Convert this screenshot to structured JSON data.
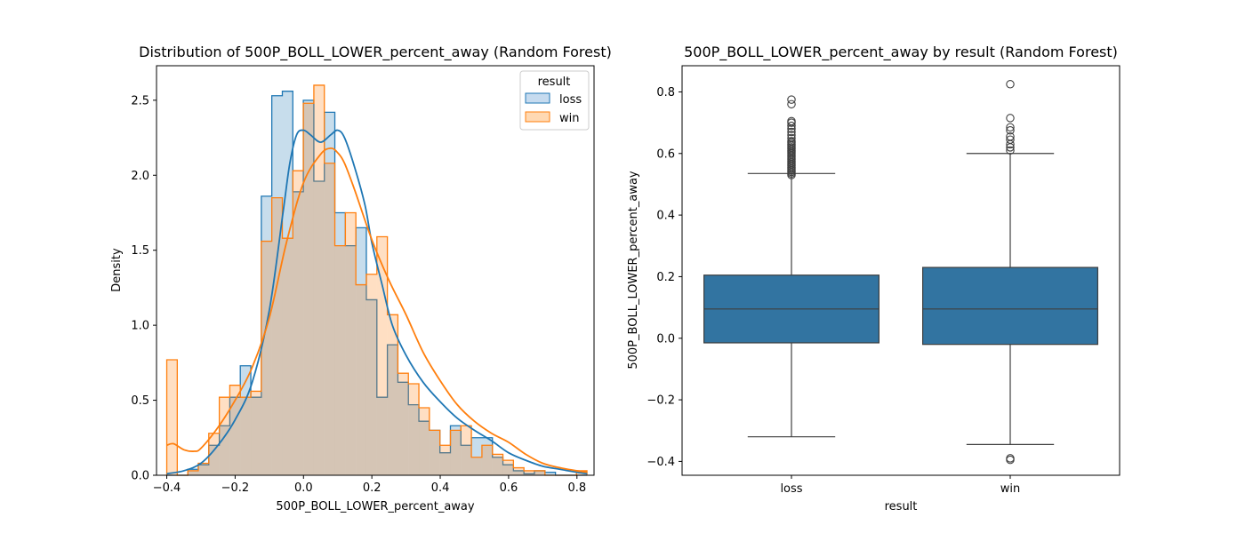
{
  "chart_data": [
    {
      "type": "histogram",
      "title": "Distribution of 500P_BOLL_LOWER_percent_away (Random Forest)",
      "xlabel": "500P_BOLL_LOWER_percent_away",
      "ylabel": "Density",
      "xlim": [
        -0.43,
        0.85
      ],
      "ylim": [
        0,
        2.73
      ],
      "xticks": [
        -0.4,
        -0.2,
        0.0,
        0.2,
        0.4,
        0.6,
        0.8
      ],
      "xtick_labels": [
        "−0.4",
        "−0.2",
        "0.0",
        "0.2",
        "0.4",
        "0.6",
        "0.8"
      ],
      "yticks": [
        0.0,
        0.5,
        1.0,
        1.5,
        2.0,
        2.5
      ],
      "ytick_labels": [
        "0.0",
        "0.5",
        "1.0",
        "1.5",
        "2.0",
        "2.5"
      ],
      "bin_edges": [
        -0.4,
        -0.3693,
        -0.3385,
        -0.3078,
        -0.2771,
        -0.2463,
        -0.2156,
        -0.1849,
        -0.1541,
        -0.1234,
        -0.0927,
        -0.0619,
        -0.0312,
        -0.0005,
        0.0303,
        0.061,
        0.0917,
        0.1225,
        0.1532,
        0.1839,
        0.2147,
        0.2454,
        0.2761,
        0.3069,
        0.3376,
        0.3683,
        0.3991,
        0.4298,
        0.4605,
        0.4912,
        0.522,
        0.5527,
        0.5834,
        0.6142,
        0.6449,
        0.6756,
        0.7064,
        0.7371,
        0.7678,
        0.7986,
        0.8293
      ],
      "legend": {
        "title": "result",
        "position": "top-right"
      },
      "series": [
        {
          "name": "loss",
          "color": "#1f77b4",
          "fill": "#c6dbef",
          "density": [
            0.0,
            0.0,
            0.04,
            0.07,
            0.2,
            0.33,
            0.52,
            0.73,
            0.52,
            1.86,
            2.53,
            2.56,
            1.89,
            2.5,
            1.96,
            2.42,
            1.75,
            1.53,
            1.65,
            1.17,
            0.52,
            0.87,
            0.62,
            0.47,
            0.36,
            0.3,
            0.15,
            0.33,
            0.2,
            0.25,
            0.25,
            0.12,
            0.07,
            0.03,
            0.01,
            0.03,
            0.02,
            0.0,
            0.0,
            0.0
          ],
          "kde_x": [
            -0.4,
            -0.35,
            -0.3,
            -0.25,
            -0.2,
            -0.15,
            -0.1,
            -0.06,
            -0.04,
            -0.02,
            0.0,
            0.02,
            0.05,
            0.08,
            0.1,
            0.12,
            0.15,
            0.18,
            0.2,
            0.23,
            0.26,
            0.3,
            0.35,
            0.4,
            0.45,
            0.5,
            0.55,
            0.6,
            0.65,
            0.7,
            0.75,
            0.8,
            0.83
          ],
          "kde_y": [
            0.01,
            0.03,
            0.08,
            0.2,
            0.37,
            0.62,
            1.1,
            1.75,
            2.08,
            2.27,
            2.3,
            2.27,
            2.22,
            2.27,
            2.3,
            2.25,
            2.05,
            1.8,
            1.55,
            1.27,
            1.0,
            0.8,
            0.62,
            0.49,
            0.38,
            0.3,
            0.23,
            0.15,
            0.1,
            0.06,
            0.04,
            0.02,
            0.01
          ]
        },
        {
          "name": "win",
          "color": "#ff7f0e",
          "fill": "#ffd9b3",
          "density": [
            0.77,
            0.0,
            0.03,
            0.08,
            0.28,
            0.52,
            0.6,
            0.52,
            0.56,
            1.56,
            1.85,
            1.58,
            2.03,
            2.48,
            2.6,
            2.08,
            1.53,
            1.75,
            1.27,
            1.34,
            1.59,
            1.07,
            0.68,
            0.61,
            0.45,
            0.3,
            0.2,
            0.3,
            0.33,
            0.12,
            0.2,
            0.14,
            0.1,
            0.05,
            0.03,
            0.03,
            0.0,
            0.0,
            0.0,
            0.03
          ],
          "kde_x": [
            -0.4,
            -0.38,
            -0.35,
            -0.32,
            -0.3,
            -0.25,
            -0.2,
            -0.15,
            -0.1,
            -0.05,
            0.0,
            0.05,
            0.08,
            0.1,
            0.12,
            0.15,
            0.2,
            0.25,
            0.3,
            0.35,
            0.4,
            0.45,
            0.5,
            0.55,
            0.6,
            0.65,
            0.7,
            0.75,
            0.8,
            0.83
          ],
          "kde_y": [
            0.2,
            0.21,
            0.17,
            0.16,
            0.18,
            0.32,
            0.5,
            0.72,
            1.05,
            1.55,
            1.95,
            2.14,
            2.18,
            2.15,
            2.08,
            1.9,
            1.57,
            1.3,
            1.07,
            0.82,
            0.63,
            0.47,
            0.36,
            0.28,
            0.22,
            0.14,
            0.08,
            0.05,
            0.03,
            0.02
          ]
        }
      ]
    },
    {
      "type": "box",
      "title": "500P_BOLL_LOWER_percent_away by result (Random Forest)",
      "xlabel": "result",
      "ylabel": "500P_BOLL_LOWER_percent_away",
      "ylim": [
        -0.445,
        0.885
      ],
      "yticks": [
        -0.4,
        -0.2,
        0.0,
        0.2,
        0.4,
        0.6,
        0.8
      ],
      "ytick_labels": [
        "−0.4",
        "−0.2",
        "0.0",
        "0.2",
        "0.4",
        "0.6",
        "0.8"
      ],
      "categories": [
        "loss",
        "win"
      ],
      "box_color": "#3274a1",
      "boxes": [
        {
          "category": "loss",
          "whisker_low": -0.32,
          "q1": -0.015,
          "median": 0.095,
          "q3": 0.205,
          "whisker_high": 0.535,
          "outliers": [
            0.53,
            0.535,
            0.54,
            0.545,
            0.55,
            0.555,
            0.56,
            0.565,
            0.57,
            0.575,
            0.58,
            0.585,
            0.59,
            0.595,
            0.6,
            0.605,
            0.61,
            0.615,
            0.62,
            0.625,
            0.63,
            0.635,
            0.64,
            0.65,
            0.66,
            0.67,
            0.68,
            0.69,
            0.7,
            0.705,
            0.76,
            0.775
          ]
        },
        {
          "category": "win",
          "whisker_low": -0.345,
          "q1": -0.02,
          "median": 0.095,
          "q3": 0.23,
          "whisker_high": 0.6,
          "outliers": [
            -0.395,
            -0.39,
            0.61,
            0.62,
            0.63,
            0.645,
            0.655,
            0.675,
            0.685,
            0.715,
            0.825
          ]
        }
      ]
    }
  ]
}
